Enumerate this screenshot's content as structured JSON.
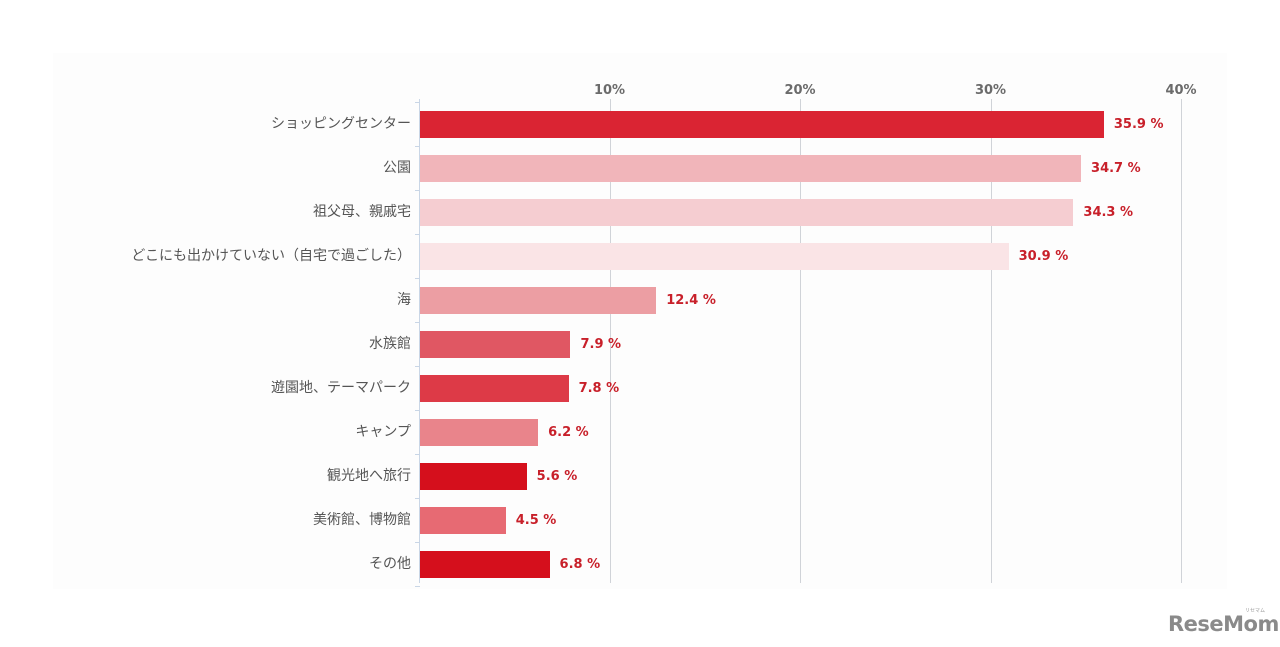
{
  "chart_data": {
    "type": "bar",
    "orientation": "horizontal",
    "title": "",
    "xlabel": "",
    "ylabel": "",
    "xlim": [
      0,
      40
    ],
    "x_ticks": [
      "10%",
      "20%",
      "30%",
      "40%"
    ],
    "grid": true,
    "legend": null,
    "categories": [
      "ショッピングセンター",
      "公園",
      "祖父母、親戚宅",
      "どこにも出かけていない（自宅で過ごした）",
      "海",
      "水族館",
      "遊園地、テーマパーク",
      "キャンプ",
      "観光地へ旅行",
      "美術館、博物館",
      "その他"
    ],
    "values": [
      35.9,
      34.7,
      34.3,
      30.9,
      12.4,
      7.9,
      7.8,
      6.2,
      5.6,
      4.5,
      6.8
    ],
    "value_labels": [
      "35.9 %",
      "34.7 %",
      "34.3 %",
      "30.9 %",
      "12.4 %",
      "7.9 %",
      "7.8 %",
      "6.2 %",
      "5.6 %",
      "4.5 %",
      "6.8 %"
    ],
    "bar_colors": [
      "#da2433",
      "#f1b5ba",
      "#f5cdd1",
      "#fae4e6",
      "#ec9ea3",
      "#e05763",
      "#dd3a47",
      "#e9848b",
      "#d50f1c",
      "#e76a73",
      "#d50f1c"
    ],
    "value_label_color": "#c8202a"
  },
  "logo": {
    "text": "ReseMom",
    "sub": "リセマム"
  }
}
